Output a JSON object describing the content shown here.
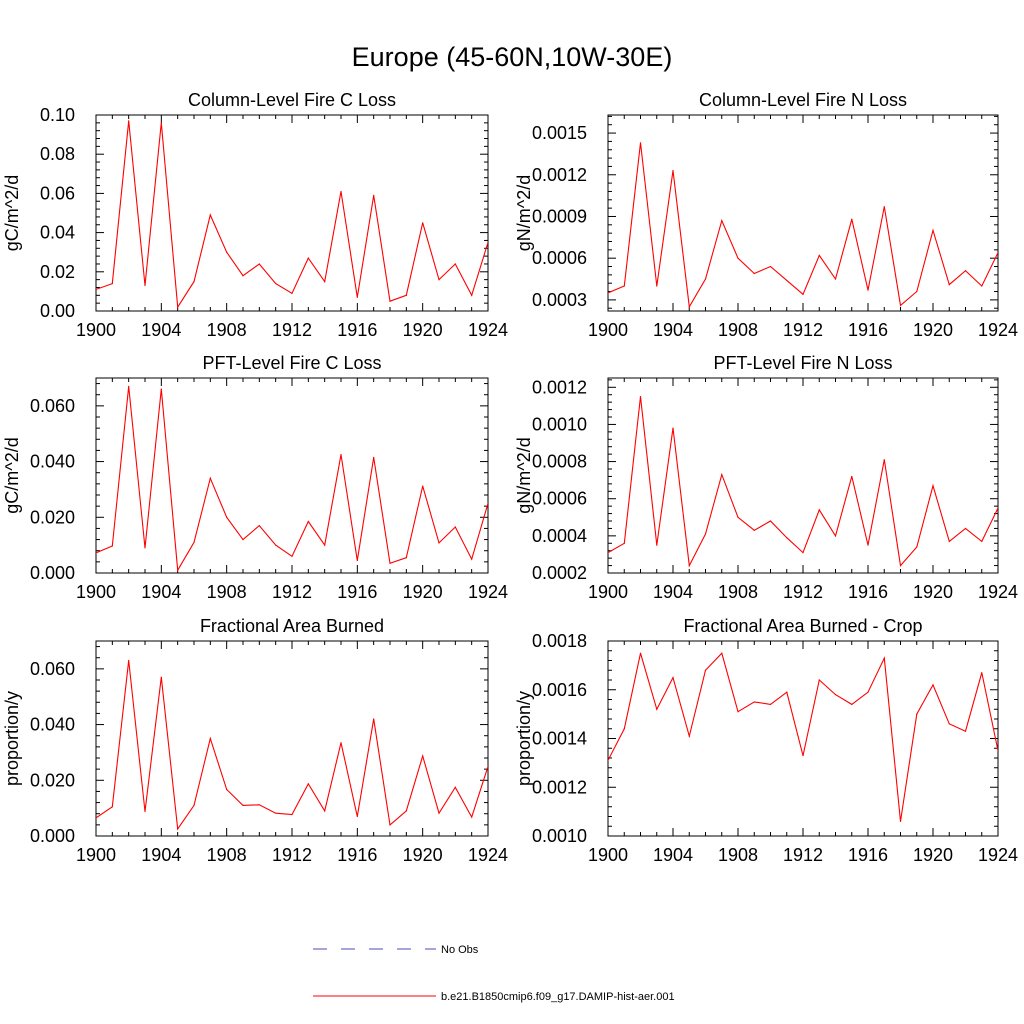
{
  "figure": {
    "title": "Europe (45-60N,10W-30E)",
    "legend": [
      {
        "label": "No Obs",
        "color": "#4b4bb4",
        "style": "dashed"
      },
      {
        "label": "b.e21.B1850cmip6.f09_g17.DAMIP-hist-aer.001",
        "color": "#ff0000",
        "style": "solid"
      }
    ]
  },
  "chart_data": [
    {
      "type": "line",
      "title": "Column-Level Fire C Loss",
      "ylabel": "gC/m^2/d",
      "xlim": [
        1900,
        1924
      ],
      "ylim": [
        0,
        0.1
      ],
      "xticks": [
        1900,
        1904,
        1908,
        1912,
        1916,
        1920,
        1924
      ],
      "yticks": [
        0,
        0.02,
        0.04,
        0.06,
        0.08,
        0.1
      ],
      "ytick_labels": [
        "0.00",
        "0.02",
        "0.04",
        "0.06",
        "0.08",
        "0.10"
      ],
      "series": [
        {
          "color": "#ff0000",
          "x": [
            1900,
            1901,
            1902,
            1903,
            1904,
            1905,
            1906,
            1907,
            1908,
            1909,
            1910,
            1911,
            1912,
            1913,
            1914,
            1915,
            1916,
            1917,
            1918,
            1919,
            1920,
            1921,
            1922,
            1923,
            1924
          ],
          "y": [
            0.011,
            0.014,
            0.097,
            0.013,
            0.096,
            0.002,
            0.015,
            0.049,
            0.03,
            0.018,
            0.024,
            0.014,
            0.009,
            0.027,
            0.015,
            0.061,
            0.007,
            0.059,
            0.005,
            0.008,
            0.045,
            0.016,
            0.024,
            0.008,
            0.035
          ]
        }
      ]
    },
    {
      "type": "line",
      "title": "Column-Level Fire N Loss",
      "ylabel": "gN/m^2/d",
      "xlim": [
        1900,
        1924
      ],
      "ylim": [
        0.00022,
        0.00163
      ],
      "xticks": [
        1900,
        1904,
        1908,
        1912,
        1916,
        1920,
        1924
      ],
      "yticks": [
        0.0003,
        0.0006,
        0.0009,
        0.0012,
        0.0015
      ],
      "ytick_labels": [
        "0.0003",
        "0.0006",
        "0.0009",
        "0.0012",
        "0.0015"
      ],
      "series": [
        {
          "color": "#ff0000",
          "x": [
            1900,
            1901,
            1902,
            1903,
            1904,
            1905,
            1906,
            1907,
            1908,
            1909,
            1910,
            1911,
            1912,
            1913,
            1914,
            1915,
            1916,
            1917,
            1918,
            1919,
            1920,
            1921,
            1922,
            1923,
            1924
          ],
          "y": [
            0.00035,
            0.0004,
            0.00143,
            0.0004,
            0.00123,
            0.00025,
            0.00045,
            0.00087,
            0.0006,
            0.00049,
            0.00054,
            0.00044,
            0.00034,
            0.00062,
            0.00045,
            0.00088,
            0.00037,
            0.00097,
            0.00026,
            0.00036,
            0.0008,
            0.00041,
            0.00051,
            0.0004,
            0.00064
          ]
        }
      ]
    },
    {
      "type": "line",
      "title": "PFT-Level Fire C Loss",
      "ylabel": "gC/m^2/d",
      "xlim": [
        1900,
        1924
      ],
      "ylim": [
        0,
        0.07
      ],
      "xticks": [
        1900,
        1904,
        1908,
        1912,
        1916,
        1920,
        1924
      ],
      "yticks": [
        0,
        0.02,
        0.04,
        0.06
      ],
      "ytick_labels": [
        "0.000",
        "0.020",
        "0.040",
        "0.060"
      ],
      "series": [
        {
          "color": "#ff0000",
          "x": [
            1900,
            1901,
            1902,
            1903,
            1904,
            1905,
            1906,
            1907,
            1908,
            1909,
            1910,
            1911,
            1912,
            1913,
            1914,
            1915,
            1916,
            1917,
            1918,
            1919,
            1920,
            1921,
            1922,
            1923,
            1924
          ],
          "y": [
            0.0072,
            0.0097,
            0.067,
            0.009,
            0.066,
            0.001,
            0.011,
            0.034,
            0.02,
            0.012,
            0.017,
            0.01,
            0.006,
            0.0185,
            0.01,
            0.0425,
            0.0045,
            0.0415,
            0.0035,
            0.0055,
            0.0312,
            0.0108,
            0.0165,
            0.005,
            0.025
          ]
        }
      ]
    },
    {
      "type": "line",
      "title": "PFT-Level Fire N Loss",
      "ylabel": "gN/m^2/d",
      "xlim": [
        1900,
        1924
      ],
      "ylim": [
        0.0002,
        0.00125
      ],
      "xticks": [
        1900,
        1904,
        1908,
        1912,
        1916,
        1920,
        1924
      ],
      "yticks": [
        0.0002,
        0.0004,
        0.0006,
        0.0008,
        0.001,
        0.0012
      ],
      "ytick_labels": [
        "0.0002",
        "0.0004",
        "0.0006",
        "0.0008",
        "0.0010",
        "0.0012"
      ],
      "series": [
        {
          "color": "#ff0000",
          "x": [
            1900,
            1901,
            1902,
            1903,
            1904,
            1905,
            1906,
            1907,
            1908,
            1909,
            1910,
            1911,
            1912,
            1913,
            1914,
            1915,
            1916,
            1917,
            1918,
            1919,
            1920,
            1921,
            1922,
            1923,
            1924
          ],
          "y": [
            0.00031,
            0.00036,
            0.00115,
            0.00035,
            0.00098,
            0.00024,
            0.00041,
            0.00073,
            0.0005,
            0.00043,
            0.00048,
            0.00039,
            0.00031,
            0.00054,
            0.0004,
            0.00072,
            0.00035,
            0.00081,
            0.00024,
            0.00034,
            0.00067,
            0.00037,
            0.00044,
            0.00037,
            0.00055
          ]
        }
      ]
    },
    {
      "type": "line",
      "title": "Fractional Area Burned",
      "ylabel": "proportion/y",
      "xlim": [
        1900,
        1924
      ],
      "ylim": [
        0,
        0.07
      ],
      "xticks": [
        1900,
        1904,
        1908,
        1912,
        1916,
        1920,
        1924
      ],
      "yticks": [
        0,
        0.02,
        0.04,
        0.06
      ],
      "ytick_labels": [
        "0.000",
        "0.020",
        "0.040",
        "0.060"
      ],
      "series": [
        {
          "color": "#ff0000",
          "x": [
            1900,
            1901,
            1902,
            1903,
            1904,
            1905,
            1906,
            1907,
            1908,
            1909,
            1910,
            1911,
            1912,
            1913,
            1914,
            1915,
            1916,
            1917,
            1918,
            1919,
            1920,
            1921,
            1922,
            1923,
            1924
          ],
          "y": [
            0.0065,
            0.0105,
            0.063,
            0.0088,
            0.057,
            0.0025,
            0.011,
            0.035,
            0.0167,
            0.011,
            0.0112,
            0.0082,
            0.0077,
            0.0187,
            0.009,
            0.0335,
            0.007,
            0.042,
            0.004,
            0.009,
            0.0287,
            0.0082,
            0.0175,
            0.0068,
            0.025
          ]
        }
      ]
    },
    {
      "type": "line",
      "title": "Fractional Area Burned - Crop",
      "ylabel": "proportion/y",
      "xlim": [
        1900,
        1924
      ],
      "ylim": [
        0.001,
        0.0018
      ],
      "xticks": [
        1900,
        1904,
        1908,
        1912,
        1916,
        1920,
        1924
      ],
      "yticks": [
        0.001,
        0.0012,
        0.0014,
        0.0016,
        0.0018
      ],
      "ytick_labels": [
        "0.0010",
        "0.0012",
        "0.0014",
        "0.0016",
        "0.0018"
      ],
      "series": [
        {
          "color": "#ff0000",
          "x": [
            1900,
            1901,
            1902,
            1903,
            1904,
            1905,
            1906,
            1907,
            1908,
            1909,
            1910,
            1911,
            1912,
            1913,
            1914,
            1915,
            1916,
            1917,
            1918,
            1919,
            1920,
            1921,
            1922,
            1923,
            1924
          ],
          "y": [
            0.00131,
            0.00144,
            0.00175,
            0.00152,
            0.00165,
            0.00141,
            0.00168,
            0.00175,
            0.00151,
            0.00155,
            0.00154,
            0.00159,
            0.00133,
            0.00164,
            0.00158,
            0.00154,
            0.00159,
            0.00173,
            0.00106,
            0.0015,
            0.00162,
            0.00146,
            0.00143,
            0.00167,
            0.00135
          ]
        }
      ]
    }
  ]
}
